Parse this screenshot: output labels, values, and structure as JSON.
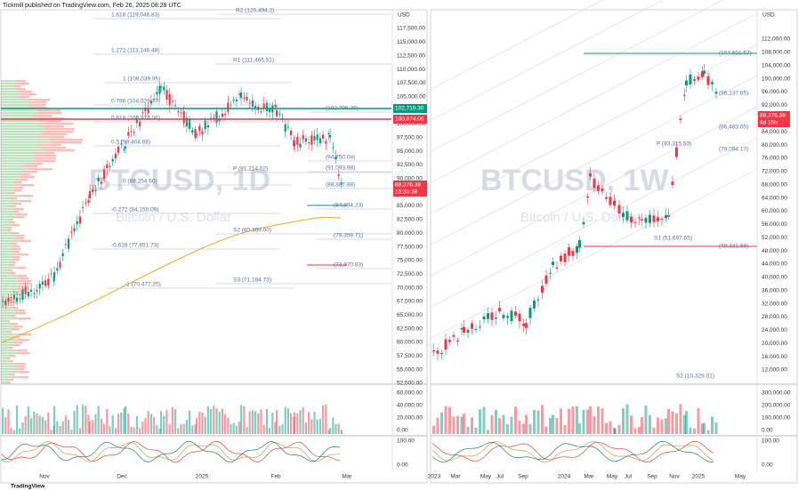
{
  "header": {
    "title": "Tickmill published on TradingView.com, Feb 26, 2025 08:28 UTC"
  },
  "left": {
    "currency": "USD",
    "watermark": "BTCUSD, 1D",
    "subtitle": "Bitcoin / U.S. Dollar",
    "price_axis": [
      "117,500.00",
      "115,000.00",
      "112,500.00",
      "110,000.00",
      "107,500.00",
      "105,000.00",
      "102,500.00",
      "100,000.00",
      "97,500.00",
      "95,000.00",
      "92,500.00",
      "90,000.00",
      "87,500.00",
      "85,000.00",
      "82,500.00",
      "80,000.00",
      "77,500.00",
      "75,000.00",
      "72,500.00",
      "70,000.00",
      "67,500.00",
      "65,000.00",
      "62,500.00",
      "60,000.00",
      "57,500.00",
      "55,000.00",
      "52,500.00"
    ],
    "badges": [
      "102,719.30",
      "100,874.06",
      "88,376.38",
      "15:30:38"
    ],
    "levels": [
      "1.618 (119,046.83)",
      "R2 (120,494.2)",
      "1.272 (113,146.48)",
      "R1 (111,466.51)",
      "1 (108,039.95)",
      "0.786 (104,029.73)",
      "(102,795.39)",
      "0.618 (100,974.06)",
      "0.5 (98,404.68)",
      "(94,750.04)",
      "(91,093.98)",
      "P (91,214.02)",
      "0 (88,254.60)",
      "(88,887.88)",
      "(84,884.23)",
      "-0.272 (84,150.09)",
      "S2 (80,369.00)",
      "(79,359.71)",
      "-0.618 (77,651.73)",
      "(73,870.83)",
      "-1 (70,477.25)",
      "S3 (71,184.73)"
    ],
    "volume_axis": [
      "60,000.00",
      "40,000.00",
      "20,000.00",
      "0.00"
    ],
    "osc_axis": [
      "100.00",
      "0.00"
    ],
    "time_axis": [
      "Nov",
      "Dec",
      "2025",
      "Feb",
      "Mar"
    ]
  },
  "right": {
    "currency": "USD",
    "watermark": "BTCUSD, 1W",
    "subtitle": "Bitcoin / U.S. Dollar",
    "price_axis": [
      "112,000.00",
      "108,000.00",
      "104,000.00",
      "100,000.00",
      "96,000.00",
      "92,000.00",
      "88,000.00",
      "84,000.00",
      "80,000.00",
      "76,000.00",
      "72,000.00",
      "68,000.00",
      "64,000.00",
      "60,000.00",
      "56,000.00",
      "52,000.00",
      "48,000.00",
      "44,000.00",
      "40,000.00",
      "36,000.00",
      "32,000.00",
      "28,000.00",
      "24,000.00",
      "20,000.00",
      "16,000.00",
      "12,000.00"
    ],
    "badges": [
      "88,376.38",
      "4d 15h"
    ],
    "levels": [
      "(107,601.57)",
      "(96,137.65)",
      "(86,483.05)",
      "P (83,315.53)",
      "(79,094.17)",
      "S1 (51,697.65)",
      "(49,331.88)",
      "S2 (10,329.01)"
    ],
    "volume_axis": [
      "300,000.00",
      "200,000.00",
      "100,000.00",
      "0.00"
    ],
    "osc_axis": [
      "100.00",
      "0.00"
    ],
    "time_axis": [
      "2023",
      "Mar",
      "May",
      "Jul",
      "Sep",
      "2024",
      "Mar",
      "May",
      "Jul",
      "Sep",
      "Nov",
      "2025",
      "May"
    ]
  },
  "footer": {
    "brand": "TradingView"
  }
}
